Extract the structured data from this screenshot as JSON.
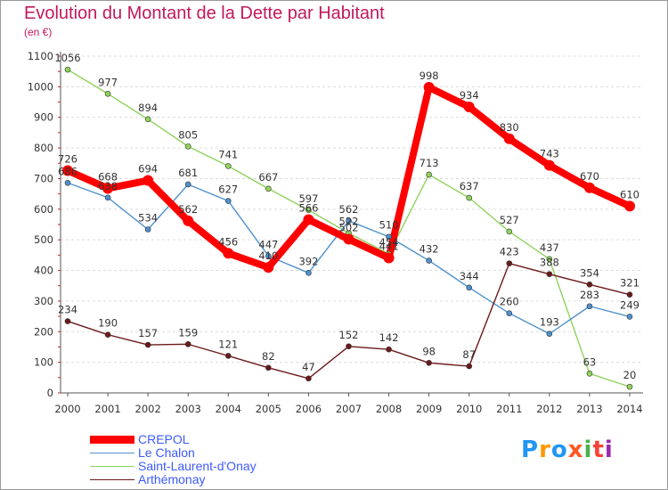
{
  "header": {
    "title": "Evolution du Montant de la Dette par Habitant",
    "unit": "(en €)"
  },
  "logo": {
    "text": "Proxiti",
    "colors": [
      "#2196f3",
      "#ff9800",
      "#2196f3",
      "#ff5722",
      "#4caf50",
      "#f44336",
      "#9c27b0"
    ]
  },
  "chart_data": {
    "type": "line",
    "title": "Evolution du Montant de la Dette par Habitant",
    "ylabel": "(en €)",
    "xlabel": "",
    "x": [
      "2000",
      "2001",
      "2002",
      "2003",
      "2004",
      "2005",
      "2006",
      "2007",
      "2008",
      "2009",
      "2010",
      "2011",
      "2012",
      "2013",
      "2014"
    ],
    "ylim": [
      0,
      1100
    ],
    "yticks": [
      0,
      100,
      200,
      300,
      400,
      500,
      600,
      700,
      800,
      900,
      1000,
      1100
    ],
    "grid": "horizontal dashed",
    "legend_position": "bottom-left",
    "series": [
      {
        "name": "CREPOL",
        "color": "#ff0000",
        "values": [
          726,
          668,
          694,
          562,
          456,
          410,
          566,
          502,
          441,
          998,
          934,
          830,
          743,
          670,
          610
        ]
      },
      {
        "name": "Le Chalon",
        "color": "#4f91cc",
        "values": [
          686,
          638,
          534,
          681,
          627,
          447,
          392,
          562,
          510,
          432,
          344,
          260,
          193,
          283,
          249
        ]
      },
      {
        "name": "Saint-Laurent-d'Onay",
        "color": "#8fd35c",
        "values": [
          1056,
          977,
          894,
          805,
          741,
          667,
          597,
          522,
          454,
          713,
          637,
          527,
          437,
          63,
          20
        ]
      },
      {
        "name": "Arthémonay",
        "color": "#6b1a1a",
        "values": [
          234,
          190,
          157,
          159,
          121,
          82,
          47,
          152,
          142,
          98,
          87,
          423,
          388,
          354,
          321
        ]
      }
    ]
  }
}
